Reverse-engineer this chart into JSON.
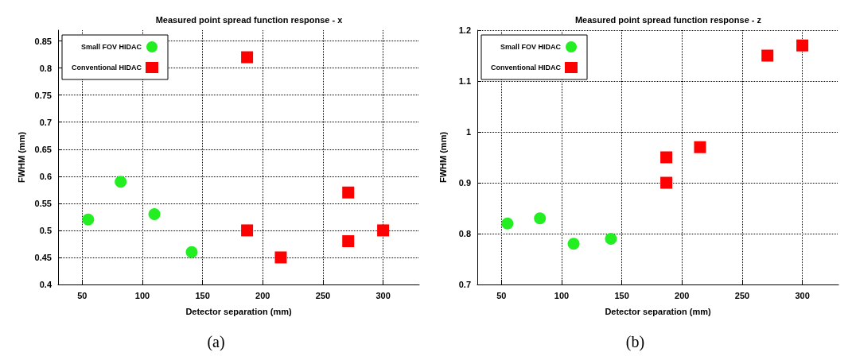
{
  "chart_data": [
    {
      "type": "scatter",
      "title": "Measured point spread function response - x",
      "xlabel": "Detector separation (mm)",
      "ylabel": "FWHM (mm)",
      "annotations": [
        "(a)"
      ],
      "series": [
        {
          "name": "Small FOV HIDAC",
          "color": "#22ee22",
          "marker": "circle",
          "x": [
            55,
            82,
            110,
            141
          ],
          "values": [
            0.52,
            0.59,
            0.53,
            0.46
          ]
        },
        {
          "name": "Conventional HIDAC",
          "color": "#ff0000",
          "marker": "square",
          "x": [
            187,
            187,
            215,
            271,
            271,
            300
          ],
          "values": [
            0.82,
            0.5,
            0.45,
            0.57,
            0.48,
            0.5
          ]
        }
      ],
      "xlim": [
        30,
        330
      ],
      "xticks": [
        50,
        100,
        150,
        200,
        250,
        300
      ],
      "ylim": [
        0.4,
        0.87
      ],
      "yticks": [
        0.4,
        0.45,
        0.5,
        0.55,
        0.6,
        0.65,
        0.7,
        0.75,
        0.8,
        0.85
      ],
      "grid": true,
      "legend": "top left"
    },
    {
      "type": "scatter",
      "title": "Measured point spread function response - z",
      "xlabel": "Detector separation (mm)",
      "ylabel": "FWHM (mm)",
      "annotations": [
        "(b)"
      ],
      "series": [
        {
          "name": "Small FOV HIDAC",
          "color": "#22ee22",
          "marker": "circle",
          "x": [
            55,
            82,
            110,
            141
          ],
          "values": [
            0.82,
            0.83,
            0.78,
            0.79
          ]
        },
        {
          "name": "Conventional HIDAC",
          "color": "#ff0000",
          "marker": "square",
          "x": [
            187,
            187,
            215,
            271,
            300
          ],
          "values": [
            0.95,
            0.9,
            0.97,
            1.15,
            1.17
          ]
        }
      ],
      "xlim": [
        30,
        330
      ],
      "xticks": [
        50,
        100,
        150,
        200,
        250,
        300
      ],
      "ylim": [
        0.7,
        1.2
      ],
      "yticks": [
        0.7,
        0.8,
        0.9,
        1,
        1.1,
        1.2
      ],
      "grid": true,
      "legend": "top left"
    }
  ]
}
